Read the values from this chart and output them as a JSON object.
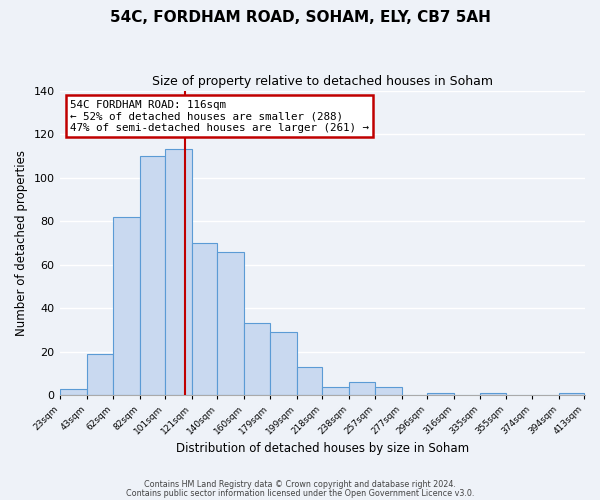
{
  "title": "54C, FORDHAM ROAD, SOHAM, ELY, CB7 5AH",
  "subtitle": "Size of property relative to detached houses in Soham",
  "xlabel": "Distribution of detached houses by size in Soham",
  "ylabel": "Number of detached properties",
  "bar_edges": [
    23,
    43,
    62,
    82,
    101,
    121,
    140,
    160,
    179,
    199,
    218,
    238,
    257,
    277,
    296,
    316,
    335,
    355,
    374,
    394,
    413
  ],
  "bar_heights": [
    3,
    19,
    82,
    110,
    113,
    70,
    66,
    33,
    29,
    13,
    4,
    6,
    4,
    0,
    1,
    0,
    1,
    0,
    0,
    1
  ],
  "tick_labels": [
    "23sqm",
    "43sqm",
    "62sqm",
    "82sqm",
    "101sqm",
    "121sqm",
    "140sqm",
    "160sqm",
    "179sqm",
    "199sqm",
    "218sqm",
    "238sqm",
    "257sqm",
    "277sqm",
    "296sqm",
    "316sqm",
    "335sqm",
    "355sqm",
    "374sqm",
    "394sqm",
    "413sqm"
  ],
  "bar_color": "#c9d9f0",
  "bar_edge_color": "#5b9bd5",
  "vline_x": 116,
  "vline_color": "#c00000",
  "ylim": [
    0,
    140
  ],
  "yticks": [
    0,
    20,
    40,
    60,
    80,
    100,
    120,
    140
  ],
  "annotation_title": "54C FORDHAM ROAD: 116sqm",
  "annotation_line1": "← 52% of detached houses are smaller (288)",
  "annotation_line2": "47% of semi-detached houses are larger (261) →",
  "annotation_box_color": "#c00000",
  "footer_line1": "Contains HM Land Registry data © Crown copyright and database right 2024.",
  "footer_line2": "Contains public sector information licensed under the Open Government Licence v3.0.",
  "background_color": "#eef2f8"
}
